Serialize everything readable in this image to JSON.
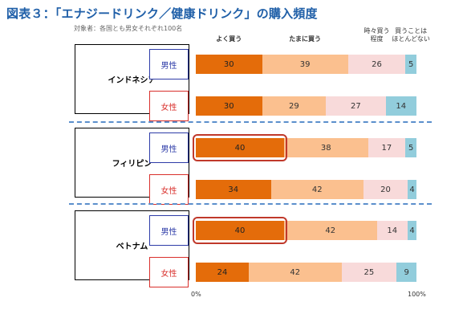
{
  "colors": {
    "often": "#E46C0A",
    "sometimes_buy": "#FBC08F",
    "occasionally": "#F8DADA",
    "rarely": "#92CDDC",
    "title": "#1F5FA8",
    "male_border": "#2E3CA8",
    "female_border": "#D9302C",
    "highlight": "#C0392B",
    "divider": "#5B8FCC"
  },
  "chart_data": {
    "type": "bar",
    "orientation": "horizontal-stacked-100",
    "title": "図表３：「エナジードリンク／健康ドリンク」の購入頻度",
    "subtitle": "対象者：各国とも男女それぞれ100名",
    "series_labels": [
      "よく買う",
      "たまに買う",
      "時々買う\n程度",
      "買うことは\nほとんどない"
    ],
    "xlim": [
      0,
      100
    ],
    "x_tick_labels": [
      "0%",
      "100%"
    ],
    "groups": [
      {
        "country": "インドネシア",
        "rows": [
          {
            "gender": "男性",
            "values": [
              30,
              39,
              26,
              5
            ],
            "highlight": false
          },
          {
            "gender": "女性",
            "values": [
              30,
              29,
              27,
              14
            ],
            "highlight": false
          }
        ]
      },
      {
        "country": "フィリピン",
        "rows": [
          {
            "gender": "男性",
            "values": [
              40,
              38,
              17,
              5
            ],
            "highlight": true
          },
          {
            "gender": "女性",
            "values": [
              34,
              42,
              20,
              4
            ],
            "highlight": false
          }
        ]
      },
      {
        "country": "ベトナム",
        "rows": [
          {
            "gender": "男性",
            "values": [
              40,
              42,
              14,
              4
            ],
            "highlight": true
          },
          {
            "gender": "女性",
            "values": [
              24,
              42,
              25,
              9
            ],
            "highlight": false
          }
        ]
      }
    ]
  }
}
